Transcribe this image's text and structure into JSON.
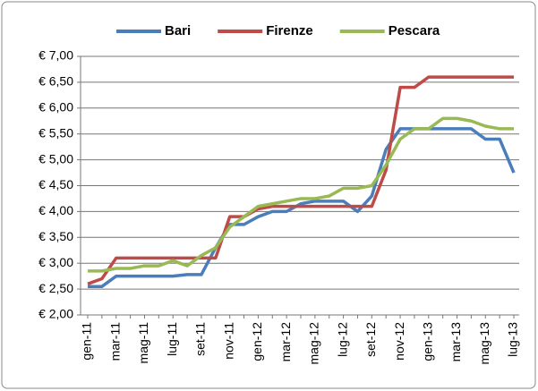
{
  "chart_data": {
    "type": "line",
    "categories": [
      "gen-11",
      null,
      "mar-11",
      null,
      "mag-11",
      null,
      "lug-11",
      null,
      "set-11",
      null,
      "nov-11",
      null,
      "gen-12",
      null,
      "mar-12",
      null,
      "mag-12",
      null,
      "lug-12",
      null,
      "set-12",
      null,
      "nov-12",
      null,
      "gen-13",
      null,
      "mar-13",
      null,
      "mag-13",
      null,
      "lug-13"
    ],
    "series": [
      {
        "name": "Bari",
        "color": "#4a7ebb",
        "values": [
          2.55,
          2.55,
          2.75,
          2.75,
          2.75,
          2.75,
          2.75,
          2.78,
          2.78,
          3.3,
          3.75,
          3.75,
          3.9,
          4.0,
          4.0,
          4.15,
          4.2,
          4.2,
          4.2,
          4.0,
          4.3,
          5.2,
          5.6,
          5.6,
          5.6,
          5.6,
          5.6,
          5.6,
          5.4,
          5.4,
          4.75
        ]
      },
      {
        "name": "Firenze",
        "color": "#be4b48",
        "values": [
          2.6,
          2.7,
          3.1,
          3.1,
          3.1,
          3.1,
          3.1,
          3.1,
          3.1,
          3.1,
          3.9,
          3.9,
          4.05,
          4.1,
          4.1,
          4.1,
          4.1,
          4.1,
          4.1,
          4.1,
          4.1,
          4.8,
          6.4,
          6.4,
          6.6,
          6.6,
          6.6,
          6.6,
          6.6,
          6.6,
          6.6
        ]
      },
      {
        "name": "Pescara",
        "color": "#98b954",
        "values": [
          2.85,
          2.85,
          2.9,
          2.9,
          2.95,
          2.95,
          3.05,
          2.95,
          3.15,
          3.3,
          3.7,
          3.9,
          4.1,
          4.15,
          4.2,
          4.25,
          4.25,
          4.3,
          4.45,
          4.45,
          4.5,
          4.9,
          5.4,
          5.6,
          5.6,
          5.8,
          5.8,
          5.75,
          5.65,
          5.6,
          5.6
        ]
      }
    ],
    "ylim": [
      2,
      7
    ],
    "yticks": [
      {
        "value": 2,
        "label": "€ 2,00"
      },
      {
        "value": 2.5,
        "label": "€ 2,50"
      },
      {
        "value": 3,
        "label": "€ 3,00"
      },
      {
        "value": 3.5,
        "label": "€ 3,50"
      },
      {
        "value": 4,
        "label": "€ 4,00"
      },
      {
        "value": 4.5,
        "label": "€ 4,50"
      },
      {
        "value": 5,
        "label": "€ 5,00"
      },
      {
        "value": 5.5,
        "label": "€ 5,50"
      },
      {
        "value": 6,
        "label": "€ 6,00"
      },
      {
        "value": 6.5,
        "label": "€ 6,50"
      },
      {
        "value": 7,
        "label": "€ 7,00"
      }
    ],
    "grid": true,
    "legend": "top"
  }
}
